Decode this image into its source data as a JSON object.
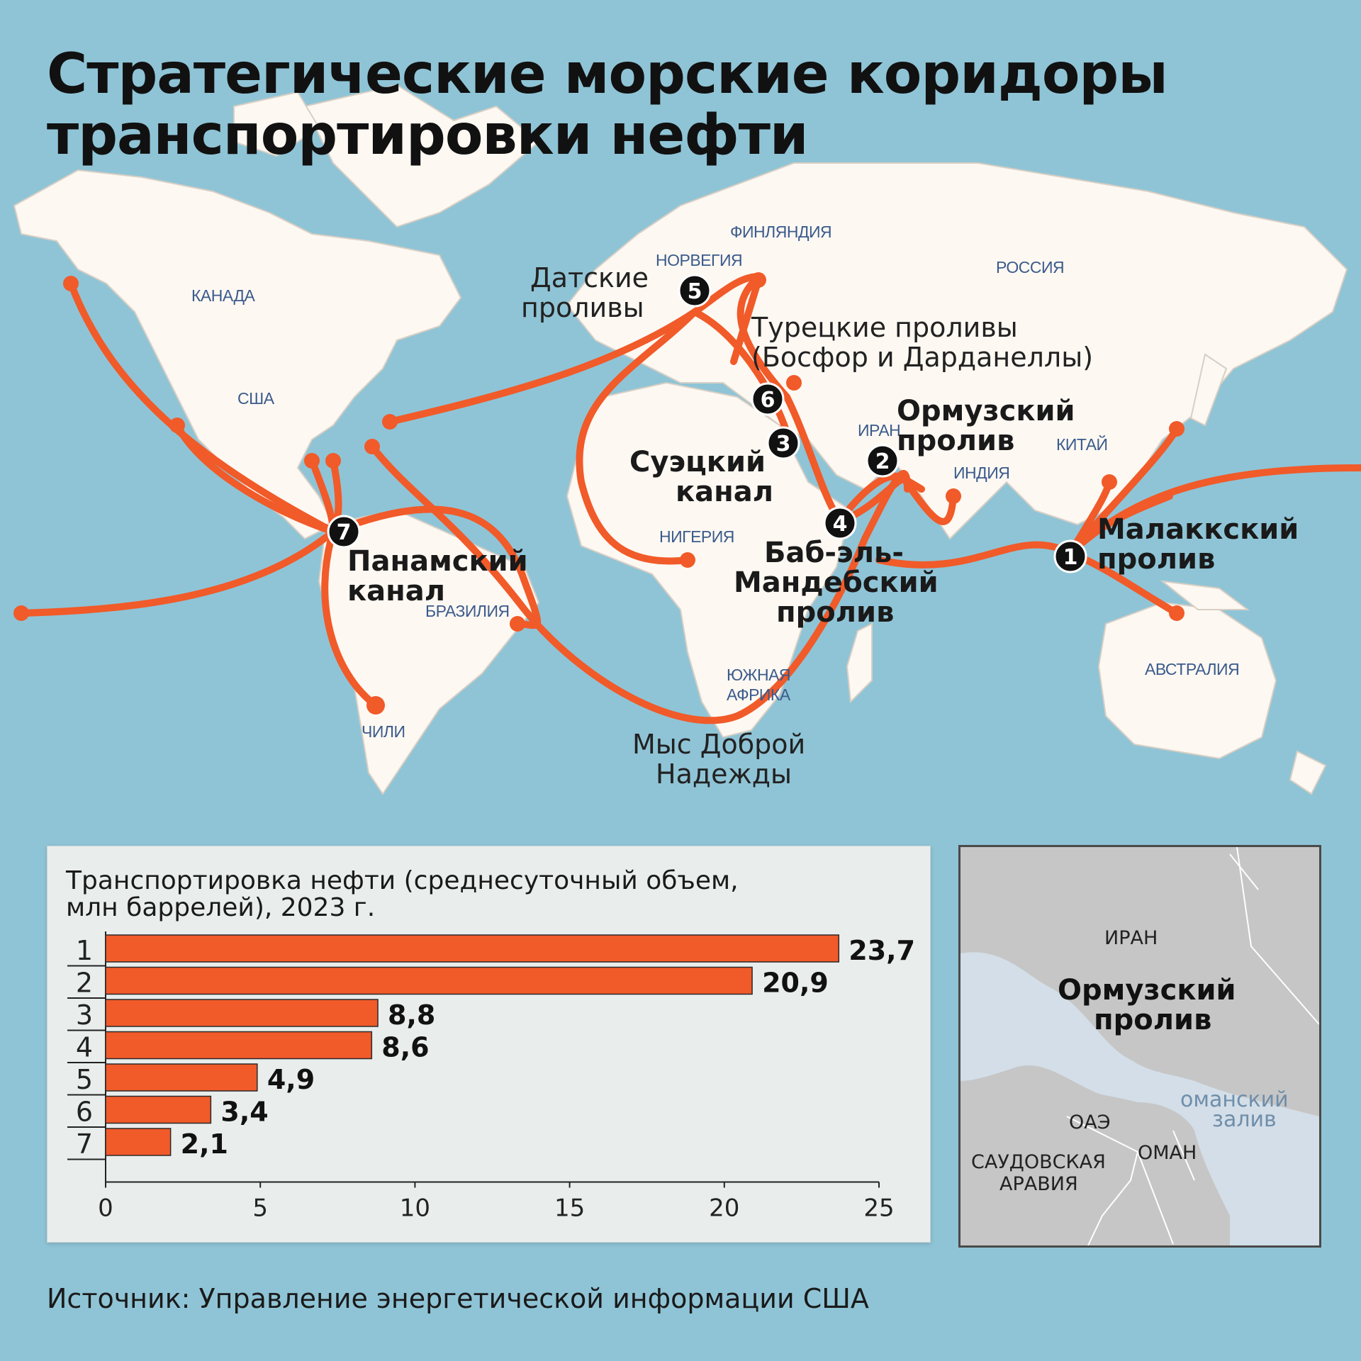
{
  "title_line1": "Стратегические морские коридоры",
  "title_line2": "транспортировки нефти",
  "countries": {
    "canada": "КАНАДА",
    "usa": "США",
    "norway": "НОРВЕГИЯ",
    "finland": "ФИНЛЯНДИЯ",
    "russia": "РОССИЯ",
    "iran": "ИРАН",
    "china": "КИТАЙ",
    "india": "ИНДИЯ",
    "nigeria": "НИГЕРИЯ",
    "brazil": "БРАЗИЛИЯ",
    "chile": "ЧИЛИ",
    "south_africa_1": "ЮЖНАЯ",
    "south_africa_2": "АФРИКА",
    "australia": "АВСТРАЛИЯ"
  },
  "chokepoints": [
    {
      "num": "1",
      "name_lines": [
        "Малаккский",
        "пролив"
      ]
    },
    {
      "num": "2",
      "name_lines": [
        "Ормузский",
        "пролив"
      ]
    },
    {
      "num": "3",
      "name_lines": [
        "Суэцкий",
        "канал"
      ]
    },
    {
      "num": "4",
      "name_lines": [
        "Баб-эль-",
        "Мандебский",
        "пролив"
      ]
    },
    {
      "num": "5",
      "name_lines": [
        "Датские",
        "проливы"
      ]
    },
    {
      "num": "6",
      "name_lines": [
        "Турецкие проливы",
        "(Босфор и Дарданеллы)"
      ]
    },
    {
      "num": "7",
      "name_lines": [
        "Панамский",
        "канал"
      ]
    }
  ],
  "cape": {
    "line1": "Мыс Доброй",
    "line2": "Надежды"
  },
  "chart_data": {
    "type": "bar",
    "orientation": "horizontal",
    "title": "Транспортировка нефти (среднесуточный объем, млн баррелей), 2023 г.",
    "title_line1": "Транспортировка нефти (среднесуточный объем,",
    "title_line2": "млн баррелей), 2023 г.",
    "categories": [
      "1",
      "2",
      "3",
      "4",
      "5",
      "6",
      "7"
    ],
    "values": [
      23.7,
      20.9,
      8.8,
      8.6,
      4.9,
      3.4,
      2.1
    ],
    "value_labels": [
      "23,7",
      "20,9",
      "8,8",
      "8,6",
      "4,9",
      "3,4",
      "2,1"
    ],
    "xlim": [
      0,
      25
    ],
    "xticks": [
      "0",
      "5",
      "10",
      "15",
      "20",
      "25"
    ],
    "bar_color": "#f15a29"
  },
  "inset": {
    "iran": "ИРАН",
    "strait_line1": "Ормузский",
    "strait_line2": "пролив",
    "gulf_line1": "оманский",
    "gulf_line2": "залив",
    "uae": "ОАЭ",
    "oman": "ОМАН",
    "saudi_line1": "САУДОВСКАЯ",
    "saudi_line2": "АРАВИЯ"
  },
  "source": "Источник: Управление энергетической информации США",
  "colors": {
    "route": "#f15a29",
    "sea": "#8fc4d6",
    "land": "#fdf8f2",
    "marker": "#111111"
  }
}
